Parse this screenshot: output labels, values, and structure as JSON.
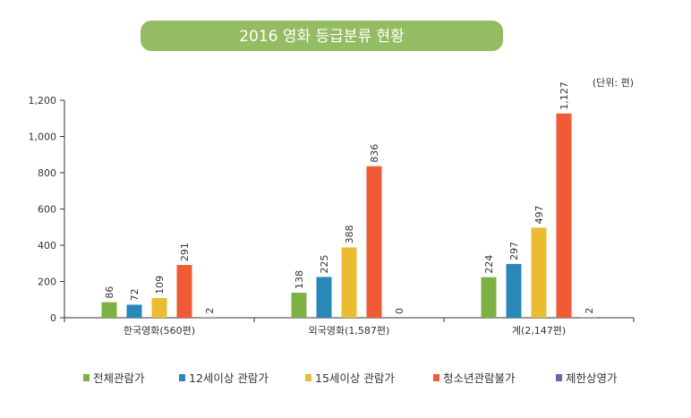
{
  "chart_data": {
    "type": "bar",
    "title": "2016 영화 등급분류 현황",
    "unit": "(단위: 편)",
    "categories": [
      "한국영화(560편)",
      "외국영화(1,587편)",
      "계(2,147편)"
    ],
    "series": [
      {
        "name": "전체관람가",
        "color": "#7db144",
        "values": [
          86,
          138,
          224
        ],
        "labels": [
          "86",
          "138",
          "224"
        ]
      },
      {
        "name": "12세이상 관람가",
        "color": "#2a88b8",
        "values": [
          72,
          225,
          297
        ],
        "labels": [
          "72",
          "225",
          "297"
        ]
      },
      {
        "name": "15세이상 관람가",
        "color": "#eabc32",
        "values": [
          109,
          388,
          497
        ],
        "labels": [
          "109",
          "388",
          "497"
        ]
      },
      {
        "name": "청소년관람불가",
        "color": "#f05a35",
        "values": [
          291,
          836,
          1127
        ],
        "labels": [
          "291",
          "836",
          "1,127"
        ]
      },
      {
        "name": "제한상영가",
        "color": "#7b5ba3",
        "values": [
          2,
          0,
          2
        ],
        "labels": [
          "2",
          "0",
          "2"
        ]
      }
    ],
    "yticks": [
      "0",
      "200",
      "400",
      "600",
      "800",
      "1,000",
      "1,200"
    ],
    "ytick_values": [
      0,
      200,
      400,
      600,
      800,
      1000,
      1200
    ],
    "ylim": [
      0,
      1200
    ],
    "legend_position": "bottom"
  }
}
